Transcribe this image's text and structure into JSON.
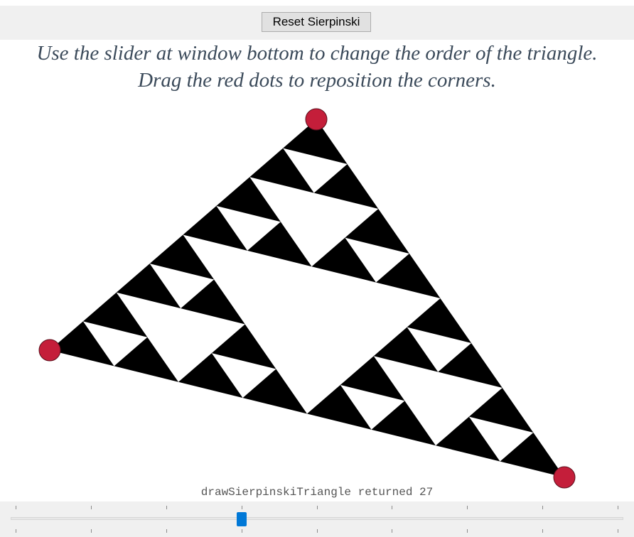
{
  "toolbar": {
    "reset_label": "Reset Sierpinski"
  },
  "instructions": {
    "line1": "Use the slider at window bottom to change the order of the triangle.",
    "line2": "Drag the red dots to reposition the corners."
  },
  "status": {
    "message": "drawSierpinskiTriangle returned 27"
  },
  "slider": {
    "value": 3,
    "min": 0,
    "max": 8
  },
  "colors": {
    "fill": "#000000",
    "handle": "#c41e3a",
    "slider_thumb": "#0078d7"
  }
}
